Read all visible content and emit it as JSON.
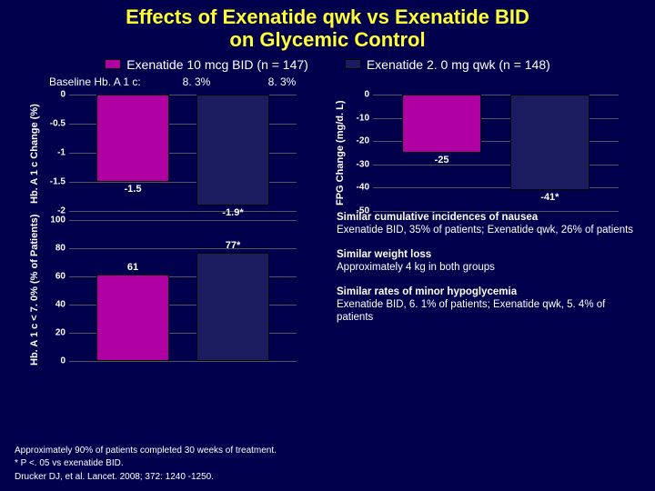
{
  "title_line1": "Effects of Exenatide qwk vs Exenatide BID",
  "title_line2": "on Glycemic Control",
  "legend": {
    "a": {
      "label": "Exenatide 10 mcg BID (n = 147)",
      "color": "#b000a4"
    },
    "b": {
      "label": "Exenatide 2. 0 mg qwk (n = 148)",
      "color": "#1b1b60"
    }
  },
  "baseline": {
    "label": "Baseline Hb. A 1 c:",
    "valA": "8. 3%",
    "valB": "8. 3%"
  },
  "palette": {
    "bg": "#00004d",
    "barA": "#b000a4",
    "barB": "#1b1b60",
    "barBorder": "#000000",
    "text": "#ffffff",
    "titleColor": "#ffff33"
  },
  "chart1": {
    "type": "bar",
    "ylabel": "Hb. A 1 c Change (%)",
    "ylim": [
      -2,
      0
    ],
    "ticks": [
      "0",
      "-0.5",
      "-1",
      "-1.5",
      "-2"
    ],
    "bars": [
      {
        "series": "a",
        "value": -1.5,
        "label": "-1.5"
      },
      {
        "series": "b",
        "value": -1.9,
        "label": "-1.9*"
      }
    ]
  },
  "chart2": {
    "type": "bar",
    "ylabel": "FPG Change (mg/d. L)",
    "ylim": [
      -50,
      0
    ],
    "ticks": [
      "0",
      "-10",
      "-20",
      "-30",
      "-40",
      "-50"
    ],
    "bars": [
      {
        "series": "a",
        "value": -25,
        "label": "-25"
      },
      {
        "series": "b",
        "value": -41,
        "label": "-41*"
      }
    ]
  },
  "chart3": {
    "type": "bar",
    "ylabel": "Hb. A 1 c < 7. 0% (% of Patients)",
    "ylim": [
      0,
      100
    ],
    "ticks": [
      "0",
      "20",
      "40",
      "60",
      "80",
      "100"
    ],
    "bars": [
      {
        "series": "a",
        "value": 61,
        "label": "61"
      },
      {
        "series": "b",
        "value": 77,
        "label": "77*"
      }
    ]
  },
  "bullets": [
    {
      "bold": "Similar cumulative incidences of nausea",
      "rest": "Exenatide BID, 35% of patients; Exenatide qwk, 26% of patients"
    },
    {
      "bold": "Similar weight loss",
      "rest": "Approximately 4 kg in both groups"
    },
    {
      "bold": "Similar rates of minor hypoglycemia",
      "rest": "Exenatide BID, 6. 1% of patients; Exenatide qwk, 5. 4% of patients"
    }
  ],
  "footer": {
    "line1": "Approximately 90% of patients completed 30 weeks of treatment.",
    "line2": "* P <. 05 vs exenatide BID.",
    "line3": "Drucker DJ, et al. Lancet. 2008; 372: 1240 -1250."
  }
}
